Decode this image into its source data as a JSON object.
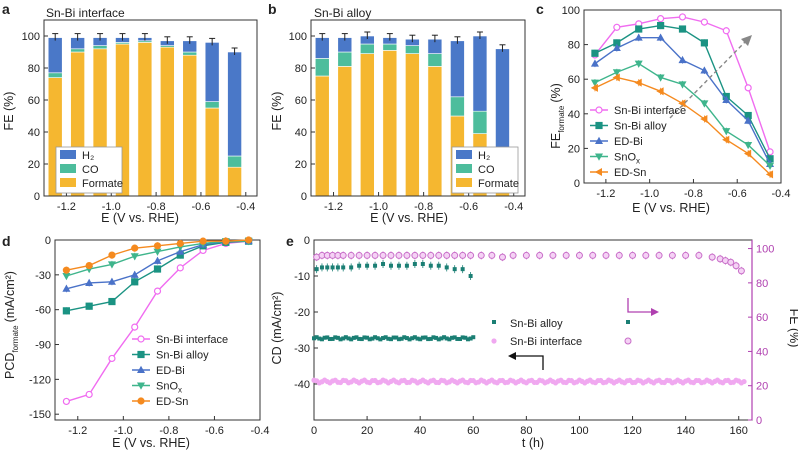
{
  "colors": {
    "formate": "#f5b730",
    "co": "#4dbd9c",
    "h2": "#4a78c8",
    "sn_bi_interface": "#f06cf0",
    "sn_bi_alloy": "#1b9383",
    "ed_bi": "#4a72c8",
    "snox": "#3fb58c",
    "ed_sn": "#f58a1f",
    "e_alloy_cd": "#1b7f74",
    "e_interface_cd": "#f0a8f0",
    "e_interface_fe": "#c86ec8",
    "e_right_axis": "#b040b0"
  },
  "chart_data": [
    {
      "panel": "a",
      "type": "bar",
      "stacked": true,
      "title": "Sn-Bi interface",
      "xlabel": "E (V vs. RHE)",
      "ylabel": "FE (%)",
      "xlim": [
        -1.3,
        -0.35
      ],
      "ylim": [
        0,
        110
      ],
      "x": [
        -1.25,
        -1.15,
        -1.05,
        -0.95,
        -0.85,
        -0.75,
        -0.65,
        -0.55,
        -0.45
      ],
      "series": [
        {
          "name": "Formate",
          "values": [
            74,
            90,
            92,
            95,
            96,
            93,
            88,
            55,
            18
          ]
        },
        {
          "name": "CO",
          "values": [
            3,
            2,
            2,
            1,
            1,
            1,
            2,
            4,
            7
          ]
        },
        {
          "name": "H₂",
          "values": [
            22,
            7,
            5,
            3,
            2,
            3,
            7,
            37,
            65
          ]
        }
      ],
      "xticks": [
        "-1.2",
        "-1.0",
        "-0.8",
        "-0.6",
        "-0.4"
      ],
      "yticks": [
        "0",
        "20",
        "40",
        "60",
        "80",
        "100"
      ],
      "legend": [
        "H₂",
        "CO",
        "Formate"
      ],
      "legend_position": "bottom-left"
    },
    {
      "panel": "b",
      "type": "bar",
      "stacked": true,
      "title": "Sn-Bi alloy",
      "xlabel": "E (V vs. RHE)",
      "ylabel": "FE (%)",
      "xlim": [
        -1.3,
        -0.35
      ],
      "ylim": [
        0,
        110
      ],
      "x": [
        -1.25,
        -1.15,
        -1.05,
        -0.95,
        -0.85,
        -0.75,
        -0.65,
        -0.55,
        -0.45
      ],
      "series": [
        {
          "name": "Formate",
          "values": [
            75,
            81,
            89,
            91,
            89,
            81,
            50,
            39,
            14
          ]
        },
        {
          "name": "CO",
          "values": [
            11,
            9,
            6,
            4,
            5,
            8,
            12,
            14,
            11
          ]
        },
        {
          "name": "H₂",
          "values": [
            13,
            9,
            5,
            4,
            4,
            9,
            35,
            47,
            67
          ]
        }
      ],
      "xticks": [
        "-1.2",
        "-1.0",
        "-0.8",
        "-0.6",
        "-0.4"
      ],
      "yticks": [
        "0",
        "20",
        "40",
        "60",
        "80",
        "100"
      ],
      "legend": [
        "H₂",
        "CO",
        "Formate"
      ],
      "legend_position": "bottom-right"
    },
    {
      "panel": "c",
      "type": "line",
      "xlabel": "E (V vs. RHE)",
      "ylabel": "FE",
      "ylabel_sub": "formate",
      "ylabel_unit": "(%)",
      "xlim": [
        -1.3,
        -0.4
      ],
      "ylim": [
        0,
        100
      ],
      "x": [
        -1.25,
        -1.15,
        -1.05,
        -0.95,
        -0.85,
        -0.75,
        -0.65,
        -0.55,
        -0.45
      ],
      "series": [
        {
          "name": "Sn-Bi interface",
          "key": "sn_bi_interface",
          "values": [
            74,
            90,
            92,
            95,
            96,
            93,
            88,
            55,
            18
          ]
        },
        {
          "name": "Sn-Bi alloy",
          "key": "sn_bi_alloy",
          "values": [
            75,
            81,
            89,
            91,
            89,
            81,
            50,
            39,
            14
          ]
        },
        {
          "name": "ED-Bi",
          "key": "ed_bi",
          "values": [
            69,
            78,
            84,
            84,
            71,
            65,
            48,
            36,
            11
          ]
        },
        {
          "name": "SnOx",
          "key": "snox",
          "values": [
            58,
            64,
            69,
            61,
            57,
            46,
            30,
            22,
            10
          ]
        },
        {
          "name": "ED-Sn",
          "key": "ed_sn",
          "values": [
            55,
            61,
            58,
            53,
            46,
            37,
            25,
            17,
            5
          ]
        }
      ],
      "markers": [
        "circle",
        "square",
        "triangle-up",
        "triangle-down",
        "triangle-left"
      ],
      "xticks": [
        "-1.2",
        "-1.0",
        "-0.8",
        "-0.6",
        "-0.4"
      ],
      "yticks": [
        "0",
        "20",
        "40",
        "60",
        "80",
        "100"
      ],
      "legend_position": "bottom-left"
    },
    {
      "panel": "d",
      "type": "line",
      "xlabel": "E (V vs. RHE)",
      "ylabel": "PCD",
      "ylabel_sub": "formate",
      "ylabel_unit": "(mA/cm²)",
      "xlim": [
        -1.3,
        -0.4
      ],
      "ylim": [
        -155,
        0
      ],
      "x": [
        -1.25,
        -1.15,
        -1.05,
        -0.95,
        -0.85,
        -0.75,
        -0.65,
        -0.55,
        -0.45
      ],
      "series": [
        {
          "name": "Sn-Bi interface",
          "key": "sn_bi_interface",
          "values": [
            -139,
            -133,
            -102,
            -75,
            -44,
            -24,
            -9,
            -3,
            -1
          ]
        },
        {
          "name": "Sn-Bi alloy",
          "key": "sn_bi_alloy",
          "values": [
            -61,
            -57,
            -53,
            -36,
            -25,
            -13,
            -5,
            -2,
            -1
          ]
        },
        {
          "name": "ED-Bi",
          "key": "ed_bi",
          "values": [
            -42,
            -37,
            -36,
            -30,
            -18,
            -10,
            -4,
            -1,
            -1
          ]
        },
        {
          "name": "SnOx",
          "key": "snox",
          "values": [
            -31,
            -25,
            -21,
            -14,
            -10,
            -6,
            -3,
            -1,
            -1
          ]
        },
        {
          "name": "ED-Sn",
          "key": "ed_sn",
          "values": [
            -26,
            -22,
            -13,
            -7,
            -5,
            -3,
            -1,
            -1,
            0
          ]
        }
      ],
      "markers": [
        "circle",
        "square",
        "triangle-up",
        "triangle-down",
        "circle"
      ],
      "xticks": [
        "-1.2",
        "-1.0",
        "-0.8",
        "-0.6",
        "-0.4"
      ],
      "yticks": [
        "0",
        "-30",
        "-60",
        "-90",
        "-120",
        "-150"
      ],
      "legend_position": "bottom-right"
    },
    {
      "panel": "e",
      "type": "scatter",
      "xlabel": "t (h)",
      "ylabel": "CD (mA/cm²)",
      "ylabel_right": "FE (%)",
      "xlim": [
        0,
        165
      ],
      "ylim": [
        -50,
        0
      ],
      "ylim_right": [
        0,
        105
      ],
      "series": [
        {
          "name": "Sn-Bi alloy",
          "key": "e_alloy_cd",
          "axis": "left",
          "t_range": [
            0,
            60
          ],
          "step": 1,
          "level": -27.3,
          "noise": 0.3
        },
        {
          "name": "Sn-Bi interface",
          "key": "e_interface_cd",
          "axis": "left",
          "t_range": [
            0,
            162
          ],
          "step": 1,
          "level": -39.3,
          "noise": 0.4
        },
        {
          "name": "Sn-Bi alloy",
          "key": "e_alloy_cd",
          "axis": "right",
          "x": [
            1,
            3,
            5,
            7,
            9,
            11,
            14,
            17,
            20,
            23,
            26,
            29,
            32,
            35,
            38,
            41,
            44,
            47,
            50,
            53,
            56,
            59
          ],
          "values": [
            88,
            89,
            89,
            89,
            89,
            89,
            89,
            90,
            90,
            90,
            91,
            90,
            90,
            90,
            91,
            91,
            90,
            90,
            89,
            88,
            88,
            84
          ]
        },
        {
          "name": "Sn-Bi interface",
          "key": "e_interface_fe",
          "axis": "right",
          "x": [
            1,
            3,
            5,
            7,
            9,
            11,
            14,
            17,
            20,
            23,
            26,
            29,
            32,
            35,
            38,
            41,
            44,
            47,
            50,
            53,
            56,
            59,
            63,
            67,
            71,
            75,
            80,
            85,
            90,
            95,
            100,
            105,
            110,
            115,
            120,
            125,
            130,
            135,
            140,
            145,
            150,
            153,
            155,
            157,
            159,
            161
          ],
          "values": [
            95,
            96,
            96,
            96,
            96,
            96,
            96,
            96,
            96,
            96,
            96,
            96,
            96,
            96,
            96,
            96,
            96,
            96,
            96,
            96,
            96,
            96,
            96,
            96,
            95,
            96,
            96,
            96,
            96,
            96,
            96,
            96,
            96,
            96,
            96,
            96,
            96,
            96,
            96,
            96,
            95,
            94,
            93,
            92,
            90,
            87
          ]
        }
      ],
      "xticks": [
        "0",
        "20",
        "40",
        "60",
        "80",
        "100",
        "120",
        "140",
        "160"
      ],
      "yticks": [
        "0",
        "-10",
        "-20",
        "-30",
        "-40"
      ],
      "yticks_right": [
        "0",
        "20",
        "40",
        "60",
        "80",
        "100"
      ],
      "legend": [
        "Sn-Bi alloy",
        "Sn-Bi interface"
      ],
      "legend_position": "center"
    }
  ],
  "panel_labels": [
    "a",
    "b",
    "c",
    "d",
    "e"
  ]
}
